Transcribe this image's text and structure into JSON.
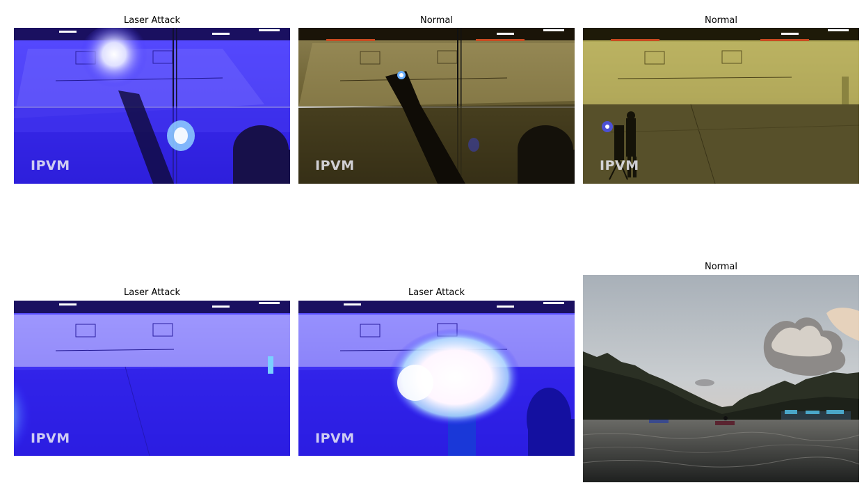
{
  "panels": [
    {
      "title": "Laser Attack",
      "watermark": "IPVM",
      "scene": "warehouse-laser-blue"
    },
    {
      "title": "Normal",
      "watermark": "IPVM",
      "scene": "warehouse-normal-raised-arm"
    },
    {
      "title": "Normal",
      "watermark": "IPVM",
      "scene": "warehouse-normal-tripod"
    },
    {
      "title": "Laser Attack",
      "watermark": "IPVM",
      "scene": "warehouse-laser-flare-left"
    },
    {
      "title": "Laser Attack",
      "watermark": "IPVM",
      "scene": "warehouse-laser-flare-center"
    },
    {
      "title": "Normal",
      "scene": "lake-sunset"
    }
  ],
  "colors": {
    "laser_blue": "#2a1cff",
    "warehouse_warm": "#6e6128",
    "warehouse_yellow": "#a8a046",
    "sky": "#c7ccd0",
    "water": "#3b3d3d"
  }
}
